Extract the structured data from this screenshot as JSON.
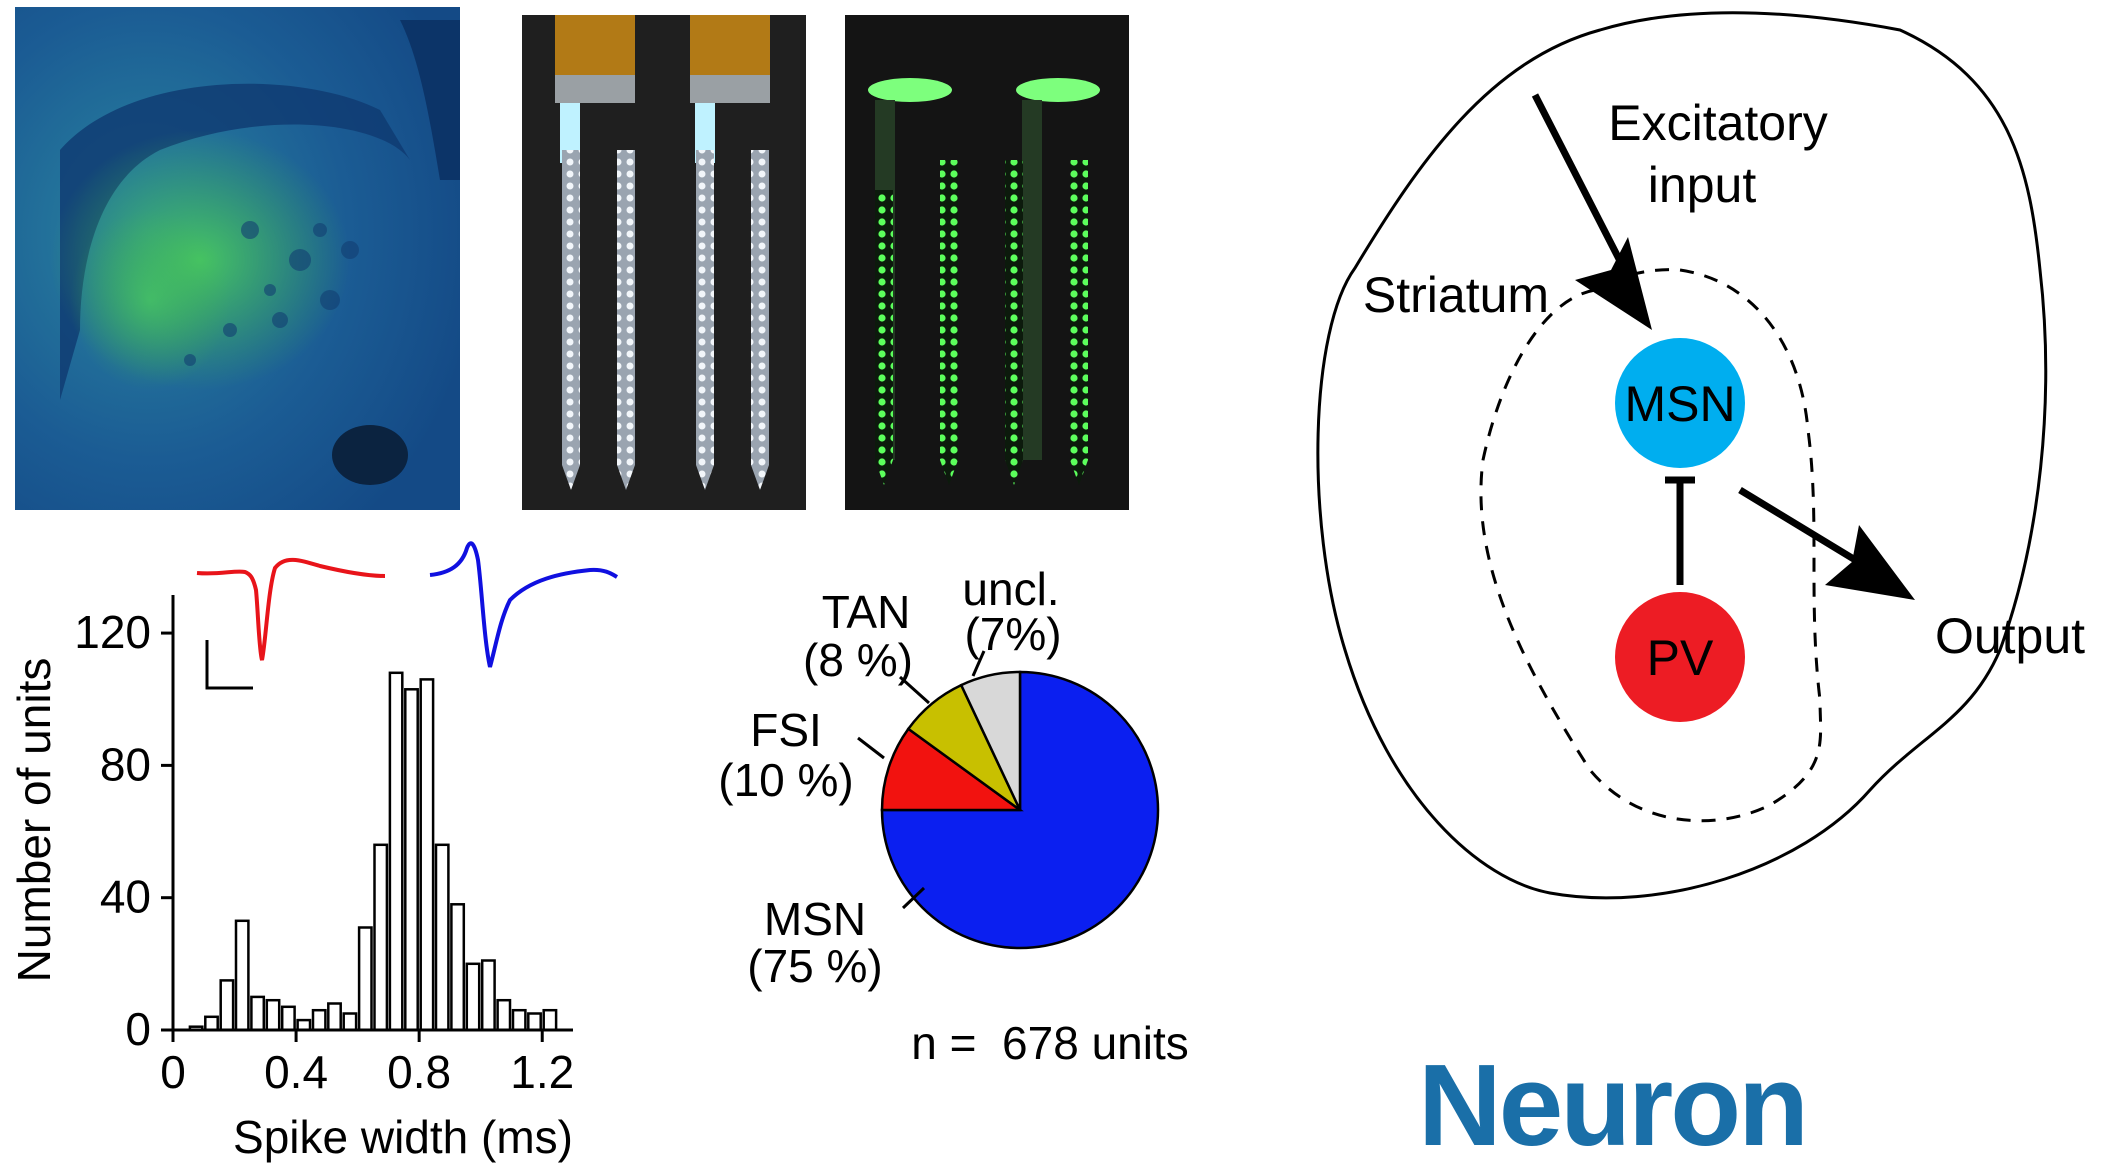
{
  "photos": {
    "brain_section": {
      "colors": {
        "background": "#1b4f8c",
        "label": "#3fb24a"
      }
    },
    "probes_white": {
      "colors": {
        "background": "#1f1f1f",
        "shank": "#cfd8e0"
      }
    },
    "probes_green": {
      "colors": {
        "background": "#141414",
        "glow": "#4dff4d"
      }
    }
  },
  "histogram": {
    "xlabel": "Spike width (ms)",
    "ylabel": "Number of units",
    "x_ticks": [
      "0",
      "0.4",
      "0.8",
      "1.2"
    ],
    "y_ticks": [
      "0",
      "40",
      "80",
      "120"
    ],
    "waveforms": {
      "narrow_color": "#e8141a",
      "wide_color": "#1010e0"
    }
  },
  "pie": {
    "labels": {
      "msn": [
        "MSN",
        "(75 %)"
      ],
      "fsi": [
        "FSI",
        "(10 %)"
      ],
      "tan": [
        "TAN",
        "(8 %)"
      ],
      "uncl": [
        "uncl.",
        "(7%)"
      ]
    },
    "n_label": "n =  678 units"
  },
  "diagram": {
    "region_label": "Striatum",
    "input_label": [
      "Excitatory",
      "input"
    ],
    "output_label": "Output",
    "msn_label": "MSN",
    "pv_label": "PV",
    "colors": {
      "msn": "#00aeef",
      "pv": "#ed1c24"
    }
  },
  "journal_logo": {
    "text": "Neuron",
    "color": "#1a6fa8"
  },
  "chart_data": [
    {
      "type": "bar",
      "xlabel": "Spike width (ms)",
      "ylabel": "Number of units",
      "x": [
        0.075,
        0.125,
        0.175,
        0.225,
        0.275,
        0.325,
        0.375,
        0.425,
        0.475,
        0.525,
        0.575,
        0.625,
        0.675,
        0.725,
        0.775,
        0.825,
        0.875,
        0.925,
        0.975,
        1.025,
        1.075,
        1.125,
        1.175,
        1.225
      ],
      "values": [
        1,
        4,
        15,
        33,
        10,
        9,
        7,
        3,
        6,
        8,
        5,
        31,
        56,
        108,
        103,
        106,
        56,
        38,
        20,
        21,
        9,
        6,
        5,
        6
      ],
      "xlim": [
        0,
        1.3
      ],
      "ylim": [
        0,
        130
      ]
    },
    {
      "type": "pie",
      "categories": [
        "MSN",
        "FSI",
        "TAN",
        "uncl."
      ],
      "values": [
        75,
        10,
        8,
        7
      ],
      "colors": [
        "#0b1ff0",
        "#f2120f",
        "#c8c000",
        "#d8d8d8"
      ]
    }
  ]
}
